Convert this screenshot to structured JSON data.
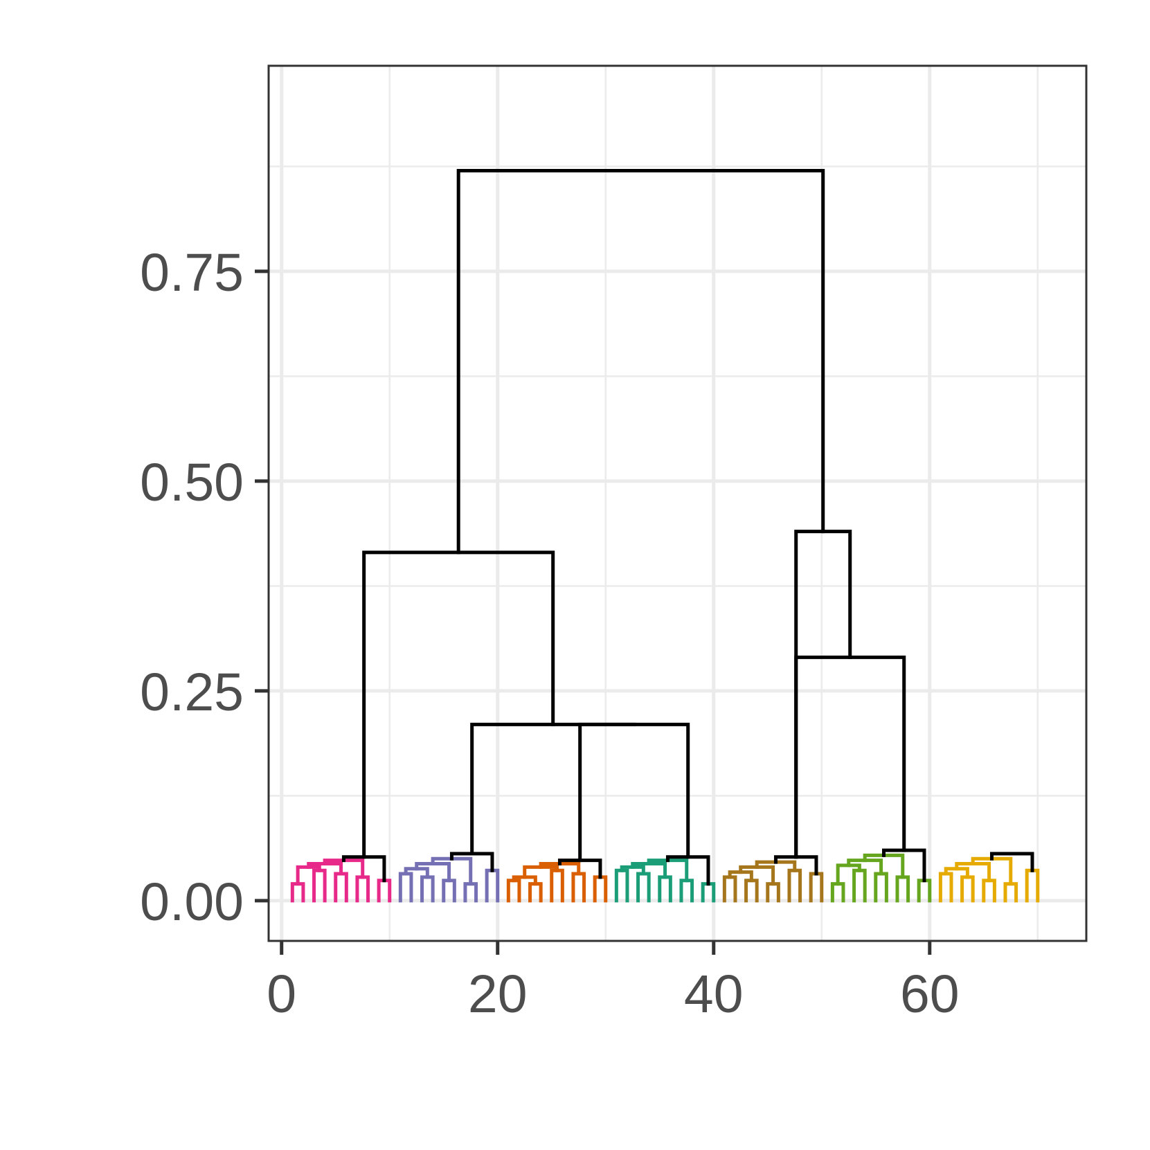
{
  "chart_data": {
    "type": "dendrogram",
    "title": "",
    "xlabel": "",
    "ylabel": "",
    "xlim": [
      -1.2,
      74.5
    ],
    "ylim": [
      -0.048,
      0.995
    ],
    "x_ticks": [
      0,
      20,
      40,
      60
    ],
    "x_tick_labels": [
      "0",
      "20",
      "40",
      "60"
    ],
    "y_ticks": [
      0,
      0.25,
      0.5,
      0.75
    ],
    "y_tick_labels": [
      "0.00",
      "0.25",
      "0.50",
      "0.75"
    ],
    "grid": true,
    "legend": "none",
    "background": "#ffffff",
    "grid_color": "#ebebeb",
    "link_color": "#000000",
    "leaf_count": 70,
    "clusters": [
      {
        "leaves": [
          1,
          10
        ],
        "color": "#e7298a",
        "top": 0.05
      },
      {
        "leaves": [
          11,
          20
        ],
        "color": "#7570b3",
        "top": 0.06
      },
      {
        "leaves": [
          21,
          30
        ],
        "color": "#d95f02",
        "top": 0.05
      },
      {
        "leaves": [
          31,
          40
        ],
        "color": "#1b9e77",
        "top": 0.05
      },
      {
        "leaves": [
          41,
          50
        ],
        "color": "#a6761d",
        "top": 0.06
      },
      {
        "leaves": [
          51,
          60
        ],
        "color": "#66a61e",
        "top": 0.06
      },
      {
        "leaves": [
          61,
          70
        ],
        "color": "#e6ab02",
        "top": 0.06
      }
    ],
    "merges": [
      {
        "left": 1,
        "right": 2,
        "height": 0.44
      },
      {
        "left": 3,
        "right": 4,
        "height": 0.21
      },
      {
        "left": 5,
        "right": 6,
        "height": 0.29
      },
      {
        "left": "c12",
        "right": "c34",
        "height": 0.42
      },
      {
        "left": "c567",
        "right": "c1234",
        "height": 0.87
      }
    ]
  }
}
